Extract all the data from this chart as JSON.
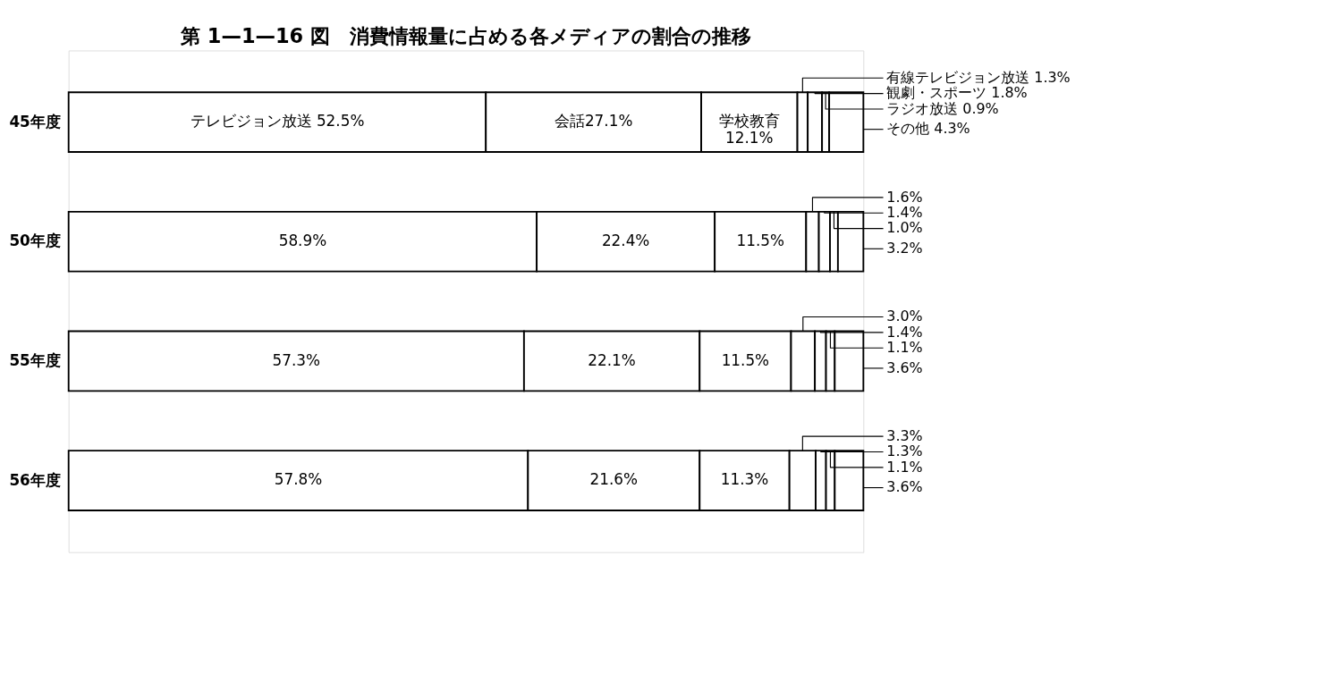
{
  "chart_data": {
    "type": "bar",
    "orientation": "horizontal",
    "stacked": true,
    "title": "第 1—1—16 図　消費情報量に占める各メディアの割合の推移",
    "categories": [
      "45年度",
      "50年度",
      "55年度",
      "56年度"
    ],
    "series": [
      {
        "color": "#ffffff",
        "values": [
          52.5,
          58.9,
          57.3,
          57.8
        ],
        "value_labels": [
          "テレビジョン放送 52.5%",
          "58.9%",
          "57.3%",
          "57.8%"
        ]
      },
      {
        "color": "#ffffff",
        "values": [
          27.1,
          22.4,
          22.1,
          21.6
        ],
        "value_labels": [
          "会話27.1%",
          "22.4%",
          "22.1%",
          "21.6%"
        ]
      },
      {
        "color": "#ffffff",
        "values": [
          12.1,
          11.5,
          11.5,
          11.3
        ],
        "value_labels": [
          "学校教育 12.1%",
          "11.5%",
          "11.5%",
          "11.3%"
        ]
      },
      {
        "color": "#ffffff",
        "values": [
          1.3,
          1.6,
          3.0,
          3.3
        ],
        "value_labels": [
          "有線テレビジョン放送 1.3%",
          "1.6%",
          "3.0%",
          "3.3%"
        ]
      },
      {
        "color": "#ffffff",
        "values": [
          1.8,
          1.4,
          1.4,
          1.3
        ],
        "value_labels": [
          "観劇・スポーツ 1.8%",
          "1.4%",
          "1.4%",
          "1.3%"
        ]
      },
      {
        "color": "#ffffff",
        "values": [
          0.9,
          1.0,
          1.1,
          1.1
        ],
        "value_labels": [
          "ラジオ放送 0.9%",
          "1.0%",
          "1.1%",
          "1.1%"
        ]
      },
      {
        "color": "#ffffff",
        "values": [
          4.3,
          3.2,
          3.6,
          3.6
        ],
        "value_labels": [
          "その他 4.3%",
          "3.2%",
          "3.6%",
          "3.6%"
        ]
      }
    ]
  }
}
